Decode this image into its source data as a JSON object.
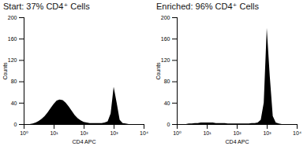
{
  "chart_data": [
    {
      "type": "area",
      "title": "Start: 37% CD4⁺ Cells",
      "x_label": "CD4 APC",
      "y_label": "Counts",
      "log": "x",
      "color": "#000000",
      "x": [
        1,
        1.26,
        1.58,
        2,
        2.51,
        3.16,
        3.98,
        5.01,
        6.31,
        7.94,
        10,
        12.6,
        15.8,
        20,
        25.1,
        31.6,
        39.8,
        50.1,
        63.1,
        79.4,
        100,
        126,
        158,
        200,
        251,
        316,
        398,
        501,
        631,
        794,
        1000,
        1259,
        1585,
        1995,
        2512,
        3162,
        3981,
        5012,
        6310,
        7943,
        10000
      ],
      "values": [
        0,
        0,
        0,
        1,
        3,
        6,
        10,
        15,
        22,
        30,
        38,
        44,
        46,
        45,
        40,
        33,
        25,
        17,
        11,
        7,
        4,
        3,
        2,
        2,
        2,
        2,
        2,
        3,
        5,
        20,
        70,
        40,
        8,
        2,
        1,
        0,
        0,
        0,
        0,
        0,
        0
      ],
      "xlim": [
        1,
        10000
      ],
      "xticks": [
        {
          "value": 1,
          "label": "10⁰"
        },
        {
          "value": 10,
          "label": "10¹"
        },
        {
          "value": 100,
          "label": "10²"
        },
        {
          "value": 1000,
          "label": "10³"
        },
        {
          "value": 10000,
          "label": "10⁴"
        }
      ],
      "ylim": [
        0,
        200
      ],
      "yticks": [
        0,
        40,
        80,
        120,
        160,
        200
      ]
    },
    {
      "type": "area",
      "title": "Enriched: 96% CD4⁺ Cells",
      "x_label": "CD4 APC",
      "y_label": "Counts",
      "log": "x",
      "color": "#000000",
      "x": [
        1,
        1.26,
        1.58,
        2,
        2.51,
        3.16,
        3.98,
        5.01,
        6.31,
        7.94,
        10,
        12.6,
        15.8,
        20,
        25.1,
        31.6,
        39.8,
        50.1,
        63.1,
        79.4,
        100,
        126,
        158,
        200,
        251,
        316,
        398,
        501,
        631,
        794,
        1000,
        1259,
        1585,
        1995,
        2512,
        3162,
        3981,
        5012,
        6310,
        7943,
        10000
      ],
      "values": [
        0,
        0,
        0,
        0,
        1,
        1,
        2,
        2,
        3,
        3,
        3,
        3,
        3,
        2,
        2,
        2,
        2,
        1,
        1,
        1,
        1,
        1,
        1,
        1,
        1,
        2,
        2,
        3,
        8,
        40,
        180,
        90,
        15,
        3,
        1,
        0,
        0,
        0,
        0,
        0,
        0
      ],
      "xlim": [
        1,
        10000
      ],
      "xticks": [
        {
          "value": 1,
          "label": "10⁰"
        },
        {
          "value": 10,
          "label": "10¹"
        },
        {
          "value": 100,
          "label": "10²"
        },
        {
          "value": 1000,
          "label": "10³"
        },
        {
          "value": 10000,
          "label": "10⁴"
        }
      ],
      "ylim": [
        0,
        200
      ],
      "yticks": [
        0,
        40,
        80,
        120,
        160,
        200
      ]
    }
  ]
}
